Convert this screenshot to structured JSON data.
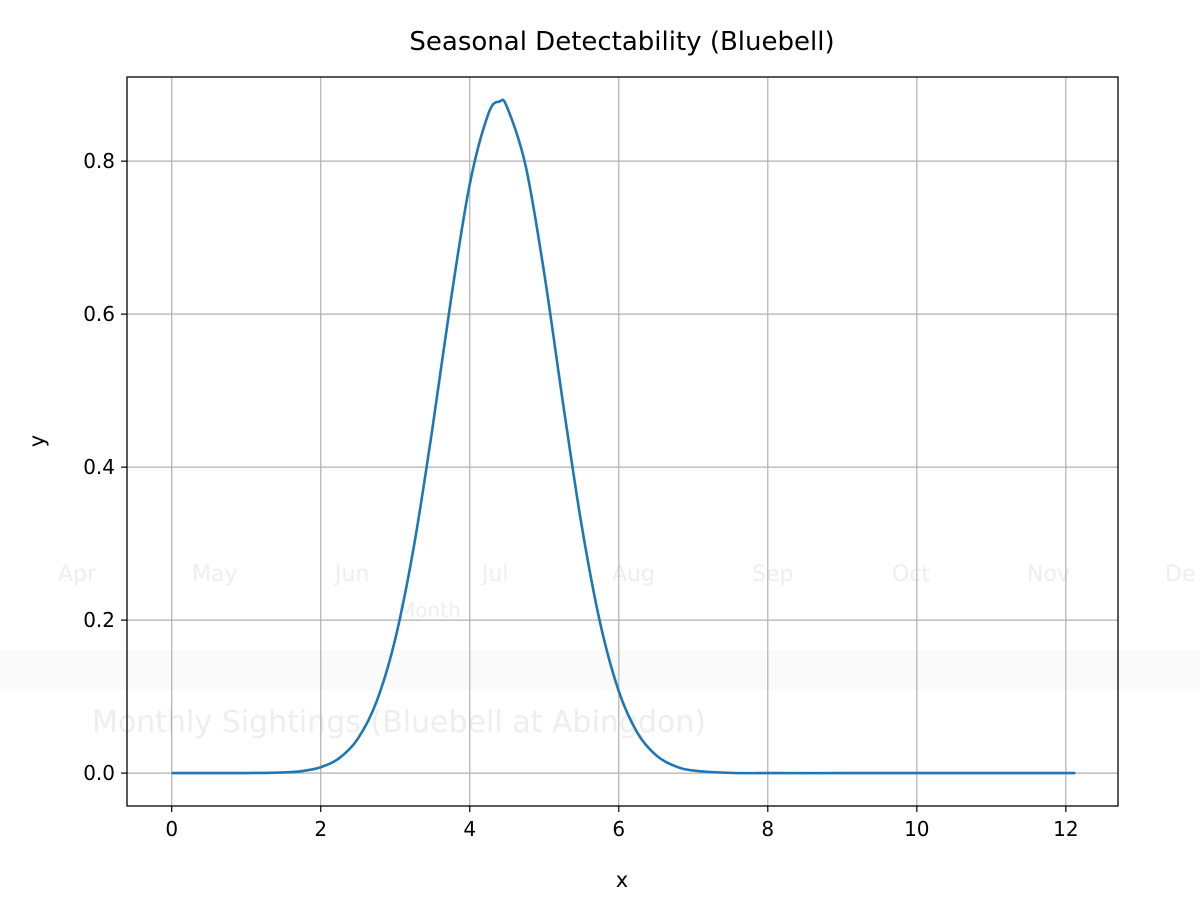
{
  "background_ghost": {
    "months": [
      "Apr",
      "May",
      "Jun",
      "Jul",
      "Aug",
      "Sep",
      "Oct",
      "Nov",
      "De"
    ],
    "xlabel": "Month",
    "title": "Monthly Sightings (Bluebell at Abingdon)"
  },
  "chart_data": {
    "type": "line",
    "title": "Seasonal Detectability (Bluebell)",
    "xlabel": "x",
    "ylabel": "y",
    "xlim": [
      -0.6,
      12.7
    ],
    "ylim": [
      -0.043,
      0.91
    ],
    "xticks": [
      0,
      2,
      4,
      6,
      8,
      10,
      12
    ],
    "xtick_labels": [
      "0",
      "2",
      "4",
      "6",
      "8",
      "10",
      "12"
    ],
    "yticks": [
      0.0,
      0.2,
      0.4,
      0.6,
      0.8
    ],
    "ytick_labels": [
      "0.0",
      "0.2",
      "0.4",
      "0.6",
      "0.8"
    ],
    "grid": true,
    "color": "#1f77b4",
    "series": [
      {
        "x": [
          0,
          1,
          1.5,
          1.75,
          2,
          2.25,
          2.5,
          2.75,
          3,
          3.25,
          3.5,
          3.75,
          4,
          4.25,
          4.4,
          4.5,
          4.75,
          5,
          5.25,
          5.5,
          5.75,
          6,
          6.25,
          6.5,
          6.75,
          7,
          7.5,
          8,
          9,
          10,
          11,
          12,
          12.1
        ],
        "y": [
          0,
          0.0001,
          0.0009,
          0.0027,
          0.0077,
          0.0197,
          0.0452,
          0.0937,
          0.1753,
          0.2962,
          0.4512,
          0.6205,
          0.7698,
          0.8619,
          0.878,
          0.8708,
          0.7939,
          0.6531,
          0.4848,
          0.3248,
          0.1963,
          0.1071,
          0.0527,
          0.0234,
          0.0094,
          0.0034,
          0.0003,
          0,
          0,
          0,
          0,
          0,
          0
        ]
      }
    ]
  }
}
